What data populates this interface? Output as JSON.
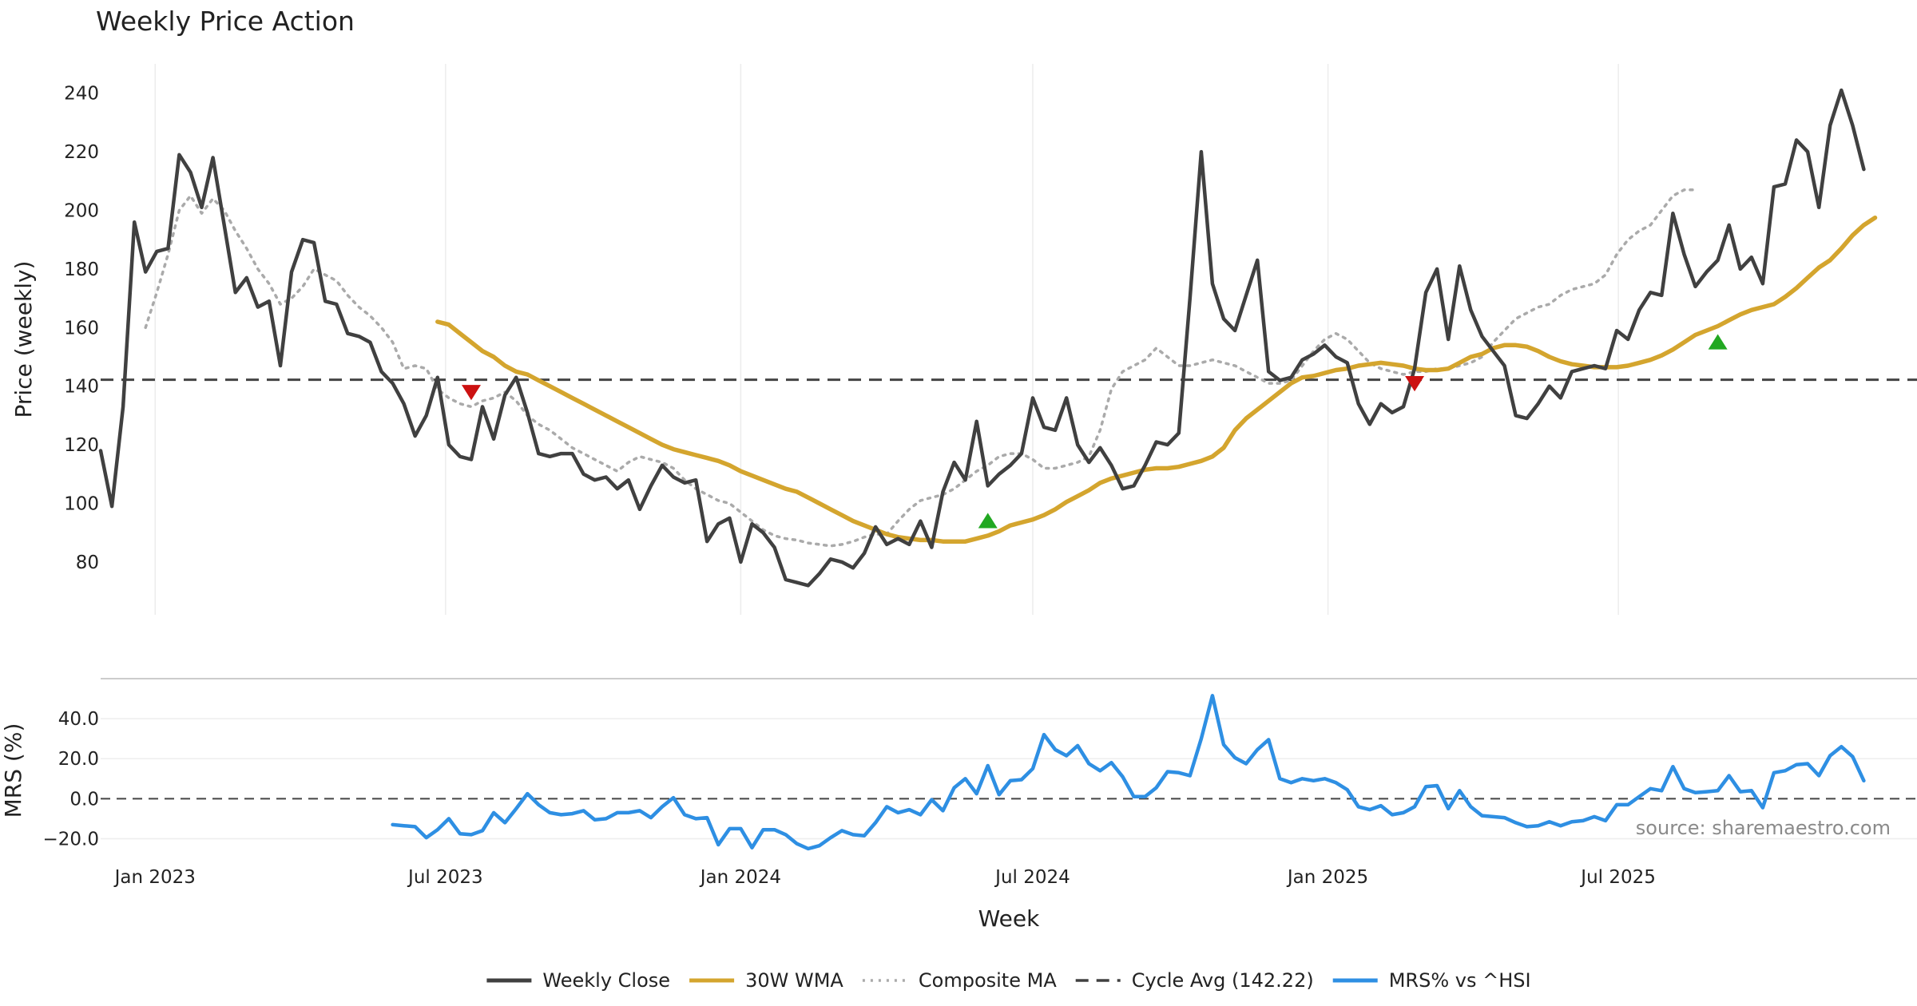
{
  "chart_data": {
    "type": "line",
    "title": "Weekly Price Action",
    "xlabel": "Week",
    "source": "source: sharemaestro.com",
    "x_start": "2022-11-28",
    "x_step_days": 7,
    "x_ticks": [
      {
        "date": "2023-01-01",
        "label": "Jan 2023"
      },
      {
        "date": "2023-07-01",
        "label": "Jul 2023"
      },
      {
        "date": "2024-01-01",
        "label": "Jan 2024"
      },
      {
        "date": "2024-07-01",
        "label": "Jul 2024"
      },
      {
        "date": "2025-01-01",
        "label": "Jan 2025"
      },
      {
        "date": "2025-07-01",
        "label": "Jul 2025"
      }
    ],
    "price_panel": {
      "ylabel": "Price (weekly)",
      "ylim": [
        62,
        250
      ],
      "yticks": [
        80,
        100,
        120,
        140,
        160,
        180,
        200,
        220,
        240
      ],
      "cycle_avg": 142.22,
      "series": [
        {
          "name": "Weekly Close",
          "color": "#404040",
          "start_index": 0,
          "values": [
            118,
            99,
            133,
            196,
            179,
            186,
            187,
            219,
            213,
            201,
            218,
            195,
            172,
            177,
            167,
            169,
            147,
            179,
            190,
            189,
            169,
            168,
            158,
            157,
            155,
            145,
            141,
            134,
            123,
            130,
            143,
            120,
            116,
            115,
            133,
            122,
            137,
            143,
            131,
            117,
            116,
            117,
            117,
            110,
            108,
            109,
            105,
            108,
            98,
            106,
            113,
            109,
            107,
            108,
            87,
            93,
            95,
            80,
            93,
            90,
            85,
            74,
            73,
            72,
            76,
            81,
            80,
            78,
            83,
            92,
            86,
            88,
            86,
            94,
            85,
            104,
            114,
            108,
            128,
            106,
            110,
            113,
            117,
            136,
            126,
            125,
            136,
            120,
            114,
            119,
            113,
            105,
            106,
            113,
            121,
            120,
            124,
            170,
            220,
            175,
            163,
            159,
            171,
            183,
            145,
            142,
            143,
            149,
            151,
            154,
            150,
            148,
            134,
            127,
            134,
            131,
            133,
            146,
            172,
            180,
            156,
            181,
            166,
            157,
            152,
            147,
            130,
            129,
            134,
            140,
            136,
            145,
            146,
            147,
            146,
            159,
            156,
            166,
            172,
            171,
            199,
            185,
            174,
            179,
            183,
            195,
            180,
            184,
            175,
            208,
            209,
            224,
            220,
            201,
            229,
            241,
            229,
            214
          ]
        },
        {
          "name": "30W WMA",
          "color": "#D4A52E",
          "start_index": 30,
          "values": [
            162,
            161,
            158,
            155,
            152,
            150,
            147,
            145,
            144,
            142,
            140,
            138,
            136,
            134,
            132,
            130,
            128,
            126,
            124,
            122,
            120,
            118.5,
            117.5,
            116.5,
            115.5,
            114.5,
            113,
            111,
            109.5,
            108,
            106.5,
            105,
            104,
            102,
            100,
            98,
            96,
            94,
            92.5,
            91,
            89.5,
            88.5,
            88,
            87.5,
            87.5,
            87,
            87,
            87,
            88,
            89,
            90.5,
            92.5,
            93.5,
            94.5,
            96,
            98,
            100.5,
            102.5,
            104.5,
            107,
            108.5,
            109.5,
            110.5,
            111.5,
            112,
            112,
            112.5,
            113.5,
            114.5,
            116,
            119,
            125,
            129,
            132,
            135,
            138,
            141,
            143,
            143.5,
            144.5,
            145.5,
            146,
            147,
            147.5,
            148,
            147.5,
            147,
            146,
            145.5,
            145.5,
            146,
            148,
            150,
            151,
            153,
            154,
            154,
            153.5,
            152,
            150,
            148.5,
            147.5,
            147,
            146.5,
            146.5,
            146.5,
            147,
            148,
            149,
            150.5,
            152.5,
            155,
            157.5,
            159,
            160.5,
            162.5,
            164.5,
            166,
            167,
            168,
            170.5,
            173.5,
            177,
            180.5,
            183,
            187,
            191.5,
            195,
            197.5
          ]
        },
        {
          "name": "Composite MA",
          "color": "#AAAAAA",
          "start_index": 4,
          "values": [
            160,
            172,
            185,
            200,
            205,
            199,
            204,
            200,
            193,
            187,
            180,
            175,
            168,
            170,
            174,
            180,
            178,
            176,
            171,
            167,
            164,
            160,
            155,
            146,
            147,
            146,
            139,
            136,
            134,
            133,
            135,
            136,
            138,
            135,
            130,
            127,
            125,
            122,
            119,
            117,
            115,
            113,
            111,
            114,
            116,
            115,
            114,
            112,
            108,
            105,
            103,
            101,
            100,
            97,
            94,
            91,
            89,
            88,
            87.5,
            86.5,
            86,
            85.5,
            86,
            87,
            88.5,
            89.5,
            89.5,
            94,
            98,
            101,
            102,
            103,
            105,
            108,
            111,
            113,
            116,
            117,
            117,
            115,
            112,
            112,
            113,
            114,
            116,
            125,
            139,
            145,
            147,
            149,
            153,
            150,
            147,
            147,
            148,
            149,
            148,
            147,
            145,
            143,
            141,
            141,
            142,
            147,
            152,
            156,
            158,
            156,
            152,
            148,
            146,
            145,
            144,
            145,
            145,
            146,
            146,
            147,
            148,
            150,
            155,
            159,
            163,
            165,
            167,
            168,
            171,
            173,
            174,
            175,
            178,
            185,
            190,
            193,
            195,
            200,
            205,
            207,
            207
          ]
        }
      ],
      "markers": [
        {
          "type": "sell",
          "index": 33,
          "value": 138,
          "color": "#CC1111"
        },
        {
          "type": "buy",
          "index": 79,
          "value": 94,
          "color": "#22A822"
        },
        {
          "type": "sell",
          "index": 117,
          "value": 141,
          "color": "#CC1111"
        },
        {
          "type": "buy",
          "index": 144,
          "value": 155,
          "color": "#22A822"
        }
      ]
    },
    "mrs_panel": {
      "ylabel": "MRS (%)",
      "ylim": [
        -27,
        56
      ],
      "yticks": [
        {
          "value": 40,
          "label": "40.0"
        },
        {
          "value": 20,
          "label": "20.0"
        },
        {
          "value": 0,
          "label": "0.0"
        },
        {
          "value": -20,
          "label": "−20.0"
        }
      ],
      "series": [
        {
          "name": "MRS% vs ^HSI",
          "color": "#2E8FE3",
          "start_index": 26,
          "values": [
            -13,
            -13.5,
            -14,
            -19.5,
            -15.5,
            -10,
            -17.5,
            -18,
            -16,
            -7,
            -12,
            -5,
            2.5,
            -3,
            -7,
            -8,
            -7.5,
            -6,
            -10.5,
            -10,
            -7,
            -7,
            -6,
            -9.5,
            -4,
            0.5,
            -8,
            -10,
            -9.5,
            -23,
            -15,
            -15,
            -24.5,
            -15.5,
            -15.5,
            -18,
            -22.5,
            -25,
            -23.5,
            -19.5,
            -16,
            -18,
            -18.5,
            -12,
            -4,
            -7,
            -5.5,
            -8,
            -0.5,
            -6,
            5.5,
            10,
            2.5,
            16.5,
            2,
            9,
            9.5,
            15,
            32,
            24.5,
            21.5,
            26.5,
            17.5,
            14,
            18,
            11,
            1,
            1,
            5.5,
            13.5,
            13,
            11.5,
            30,
            51.5,
            27,
            20.5,
            17.5,
            24.5,
            29.5,
            10,
            8,
            10,
            9,
            10,
            8,
            4.5,
            -4,
            -5.5,
            -3.5,
            -8,
            -7,
            -4,
            6,
            6.5,
            -5,
            4,
            -4,
            -8.5,
            -9,
            -9.5,
            -12,
            -14,
            -13.5,
            -11.5,
            -13.5,
            -11.5,
            -11,
            -9,
            -11,
            -3,
            -3,
            1,
            5,
            4,
            16,
            5,
            3,
            3.5,
            4,
            11.5,
            3.5,
            4,
            -4.5,
            13,
            14,
            17,
            17.5,
            11.5,
            21.5,
            26,
            21,
            9
          ]
        }
      ]
    },
    "legend": [
      {
        "label": "Weekly Close",
        "style": "solid",
        "color": "#404040"
      },
      {
        "label": "30W WMA",
        "style": "solid",
        "color": "#D4A52E"
      },
      {
        "label": "Composite MA",
        "style": "dotted",
        "color": "#AAAAAA"
      },
      {
        "label": "Cycle Avg (142.22)",
        "style": "dashed",
        "color": "#404040"
      },
      {
        "label": "MRS% vs ^HSI",
        "style": "solid",
        "color": "#2E8FE3"
      }
    ]
  }
}
